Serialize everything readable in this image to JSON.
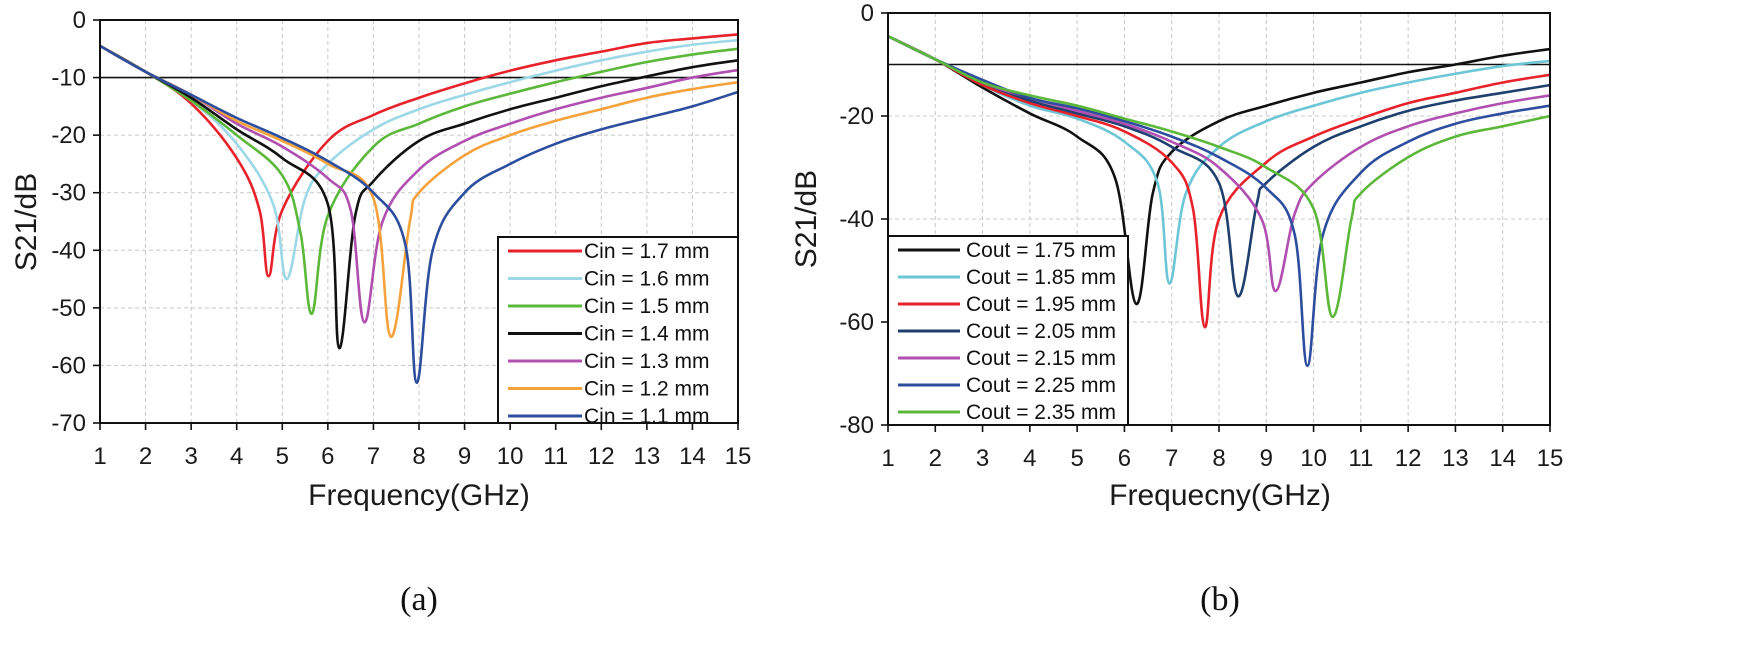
{
  "chart_data": [
    {
      "type": "line",
      "panel_label": "(a)",
      "xlabel": "Frequency(GHz)",
      "ylabel": "S21/dB",
      "xlim": [
        1,
        15
      ],
      "ylim": [
        -70,
        0
      ],
      "xticks": [
        "1",
        "2",
        "3",
        "4",
        "5",
        "6",
        "7",
        "8",
        "9",
        "10",
        "11",
        "12",
        "13",
        "14",
        "15"
      ],
      "yticks": [
        "0",
        "-10",
        "-20",
        "-30",
        "-40",
        "-50",
        "-60",
        "-70"
      ],
      "grid": true,
      "reference_line_y": -10,
      "legend_position": "bottom-right",
      "series": [
        {
          "name": "Cin = 1.7 mm",
          "color": "#e8222a",
          "x": [
            1,
            2,
            3,
            4,
            4.5,
            4.7,
            5,
            6,
            7,
            8,
            9,
            10,
            11,
            12,
            13,
            14,
            15
          ],
          "y": [
            -4.5,
            -9,
            -14.5,
            -24,
            -33,
            -44.5,
            -33,
            -21,
            -16.5,
            -13.5,
            -11,
            -8.8,
            -7,
            -5.5,
            -4,
            -3.2,
            -2.5
          ]
        },
        {
          "name": "Cin = 1.6 mm",
          "color": "#9dd8e6",
          "x": [
            1,
            2,
            3,
            4,
            4.8,
            5.1,
            5.5,
            6,
            7,
            8,
            9,
            10,
            11,
            12,
            13,
            14,
            15
          ],
          "y": [
            -4.5,
            -9,
            -14,
            -21.5,
            -32,
            -45,
            -31,
            -25,
            -19,
            -15.5,
            -13,
            -10.8,
            -8.8,
            -7,
            -5.5,
            -4.3,
            -3.5
          ]
        },
        {
          "name": "Cin = 1.5 mm",
          "color": "#5cb83a",
          "x": [
            1,
            2,
            3,
            4,
            5,
            5.4,
            5.65,
            6,
            7,
            8,
            9,
            10,
            11,
            12,
            13,
            14,
            15
          ],
          "y": [
            -4.5,
            -9,
            -14,
            -20,
            -27,
            -37,
            -51,
            -34,
            -22,
            -18,
            -15,
            -12.8,
            -10.8,
            -9,
            -7.3,
            -6,
            -5
          ]
        },
        {
          "name": "Cin = 1.4 mm",
          "color": "#111111",
          "x": [
            1,
            2,
            3,
            4,
            5,
            6,
            6.25,
            6.6,
            7,
            8,
            9,
            10,
            11,
            12,
            13,
            14,
            15
          ],
          "y": [
            -4.5,
            -9,
            -13.5,
            -19,
            -24,
            -32,
            -57,
            -34,
            -28,
            -21,
            -18,
            -15.5,
            -13.5,
            -11.5,
            -9.8,
            -8.2,
            -7
          ]
        },
        {
          "name": "Cin = 1.3 mm",
          "color": "#b04fb0",
          "x": [
            1,
            2,
            3,
            4,
            5,
            6,
            6.5,
            6.8,
            7.2,
            8,
            9,
            10,
            11,
            12,
            13,
            14,
            15
          ],
          "y": [
            -4.5,
            -9,
            -13,
            -18,
            -22,
            -27.5,
            -33,
            -52.5,
            -35,
            -26,
            -21,
            -18,
            -15.5,
            -13.5,
            -11.8,
            -10,
            -8.7
          ]
        },
        {
          "name": "Cin = 1.2 mm",
          "color": "#f5a23c",
          "x": [
            1,
            2,
            3,
            4,
            5,
            6,
            7,
            7.38,
            7.8,
            8,
            9,
            10,
            11,
            12,
            13,
            14,
            15
          ],
          "y": [
            -4.5,
            -9,
            -13,
            -17.5,
            -21,
            -25,
            -31,
            -55,
            -35,
            -30,
            -23.5,
            -20,
            -17.5,
            -15.5,
            -13.5,
            -12,
            -10.8
          ]
        },
        {
          "name": "Cin = 1.1 mm",
          "color": "#2d4e9e",
          "x": [
            1,
            2,
            3,
            4,
            5,
            6,
            7,
            7.7,
            7.95,
            8.3,
            9,
            10,
            11,
            12,
            13,
            14,
            15
          ],
          "y": [
            -4.5,
            -9,
            -13,
            -17,
            -20.5,
            -24.5,
            -30,
            -39,
            -63,
            -40,
            -30,
            -25,
            -21.5,
            -19,
            -17,
            -15,
            -12.5
          ]
        }
      ]
    },
    {
      "type": "line",
      "panel_label": "(b)",
      "xlabel": "Frequecny(GHz)",
      "ylabel": "S21/dB",
      "xlim": [
        1,
        15
      ],
      "ylim": [
        -80,
        0
      ],
      "xticks": [
        "1",
        "2",
        "3",
        "4",
        "5",
        "6",
        "7",
        "8",
        "9",
        "10",
        "11",
        "12",
        "13",
        "14",
        "15"
      ],
      "yticks": [
        "0",
        "-20",
        "-40",
        "-60",
        "-80"
      ],
      "grid": true,
      "reference_line_y": -10,
      "legend_position": "bottom-left",
      "series": [
        {
          "name": "Cout = 1.75 mm",
          "color": "#111111",
          "x": [
            1,
            2,
            3,
            4,
            5,
            5.8,
            6.25,
            6.6,
            7,
            8,
            9,
            10,
            11,
            12,
            13,
            14,
            15
          ],
          "y": [
            -4.5,
            -9,
            -14.5,
            -19.5,
            -24,
            -32,
            -56.5,
            -35,
            -27,
            -21,
            -18,
            -15.5,
            -13.5,
            -11.5,
            -10,
            -8.3,
            -7
          ]
        },
        {
          "name": "Cout = 1.85 mm",
          "color": "#6cc6d6",
          "x": [
            1,
            2,
            3,
            4,
            5,
            6,
            6.7,
            6.95,
            7.3,
            8,
            9,
            10,
            11,
            12,
            13,
            14,
            15
          ],
          "y": [
            -4.5,
            -9,
            -14,
            -18,
            -20.5,
            -25,
            -33,
            -52.5,
            -35,
            -26,
            -21,
            -18,
            -15.5,
            -13.5,
            -11.8,
            -10.3,
            -9.3
          ]
        },
        {
          "name": "Cout = 1.95 mm",
          "color": "#e8222a",
          "x": [
            1,
            2,
            3,
            4,
            5,
            6,
            7,
            7.45,
            7.7,
            8,
            9,
            10,
            11,
            12,
            13,
            14,
            15
          ],
          "y": [
            -4.5,
            -9,
            -14,
            -17.5,
            -20,
            -23,
            -29,
            -38,
            -61,
            -40,
            -29,
            -24,
            -20.5,
            -17.5,
            -15.5,
            -13.5,
            -12
          ]
        },
        {
          "name": "Cout = 2.05 mm",
          "color": "#1f3f6e",
          "x": [
            1,
            2,
            3,
            4,
            5,
            6,
            7,
            8,
            8.4,
            8.8,
            9,
            10,
            11,
            12,
            13,
            14,
            15
          ],
          "y": [
            -4.5,
            -9,
            -13.5,
            -17,
            -19.5,
            -22,
            -26,
            -33,
            -55,
            -37,
            -33,
            -26,
            -22,
            -19,
            -17,
            -15.5,
            -14
          ]
        },
        {
          "name": "Cout = 2.15 mm",
          "color": "#b04fb0",
          "x": [
            1,
            2,
            3,
            4,
            5,
            6,
            7,
            8,
            8.9,
            9.2,
            9.6,
            10,
            11,
            12,
            13,
            14,
            15
          ],
          "y": [
            -4.5,
            -9,
            -13.5,
            -16.5,
            -19,
            -21.5,
            -25,
            -30,
            -40,
            -54,
            -39,
            -33,
            -26,
            -22,
            -19.5,
            -17.5,
            -16
          ]
        },
        {
          "name": "Cout = 2.25 mm",
          "color": "#2d4e9e",
          "x": [
            1,
            2,
            3,
            4,
            5,
            6,
            7,
            8,
            9,
            9.6,
            9.87,
            10.2,
            11,
            12,
            13,
            14,
            15
          ],
          "y": [
            -4.5,
            -9,
            -13,
            -16.5,
            -18.5,
            -21,
            -24,
            -28,
            -34,
            -43,
            -68.5,
            -43,
            -31,
            -25,
            -21.5,
            -19.5,
            -18
          ]
        },
        {
          "name": "Cout = 2.35 mm",
          "color": "#5cb83a",
          "x": [
            1,
            2,
            3,
            4,
            5,
            6,
            7,
            8,
            9,
            10,
            10.4,
            10.8,
            11,
            12,
            13,
            14,
            15
          ],
          "y": [
            -4.5,
            -9,
            -13.5,
            -16,
            -18,
            -20.5,
            -23,
            -26,
            -30,
            -38,
            -59,
            -40,
            -35,
            -28,
            -24,
            -22,
            -20
          ]
        }
      ]
    }
  ]
}
